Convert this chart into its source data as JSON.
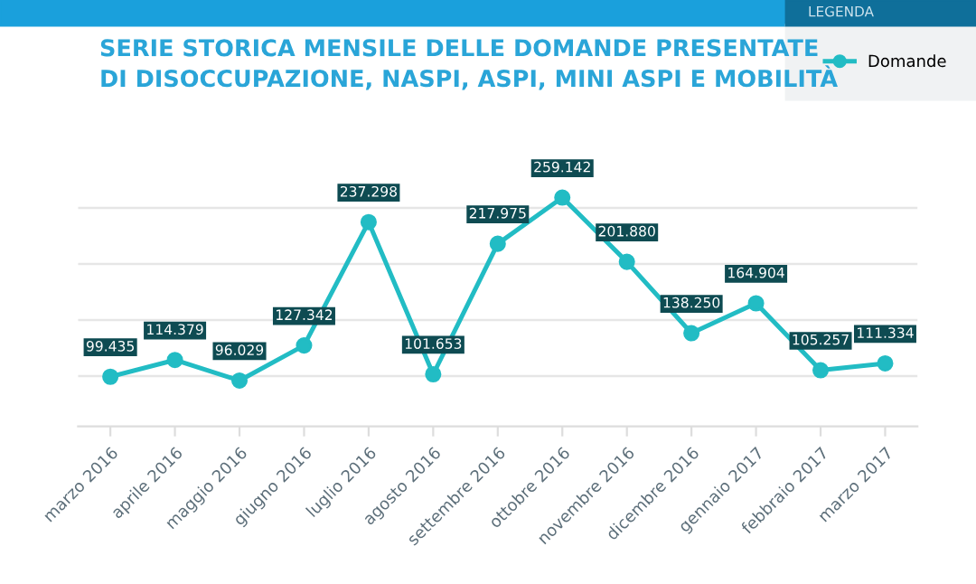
{
  "chart_data": {
    "type": "line",
    "title": "SERIE STORICA MENSILE DELLE DOMANDE PRESENTATE\nDI DISOCCUPAZIONE, NASPI, ASPI, MINI ASPI E MOBILITÀ",
    "legend_title": "LEGENDA",
    "categories": [
      "marzo 2016",
      "aprile 2016",
      "maggio 2016",
      "giugno 2016",
      "luglio 2016",
      "agosto 2016",
      "settembre 2016",
      "ottobre 2016",
      "novembre 2016",
      "dicembre 2016",
      "gennaio 2017",
      "febbraio 2017",
      "marzo 2017"
    ],
    "series": [
      {
        "name": "Domande",
        "color": "#22bcc4",
        "values": [
          99435,
          114379,
          96029,
          127342,
          237298,
          101653,
          217975,
          259142,
          201880,
          138250,
          164904,
          105257,
          111334
        ],
        "value_labels": [
          "99.435",
          "114.379",
          "96.029",
          "127.342",
          "237.298",
          "101.653",
          "217.975",
          "259.142",
          "201.880",
          "138.250",
          "164.904",
          "105.257",
          "111.334"
        ]
      }
    ],
    "yticks": [
      {
        "value": 100000,
        "label": null
      },
      {
        "value": 150000,
        "label": null
      },
      {
        "value": 200000,
        "label": null
      },
      {
        "value": 250000,
        "label": null
      }
    ],
    "grid": "y",
    "legend": "top right",
    "marker": "circle",
    "line_style": "solid"
  }
}
